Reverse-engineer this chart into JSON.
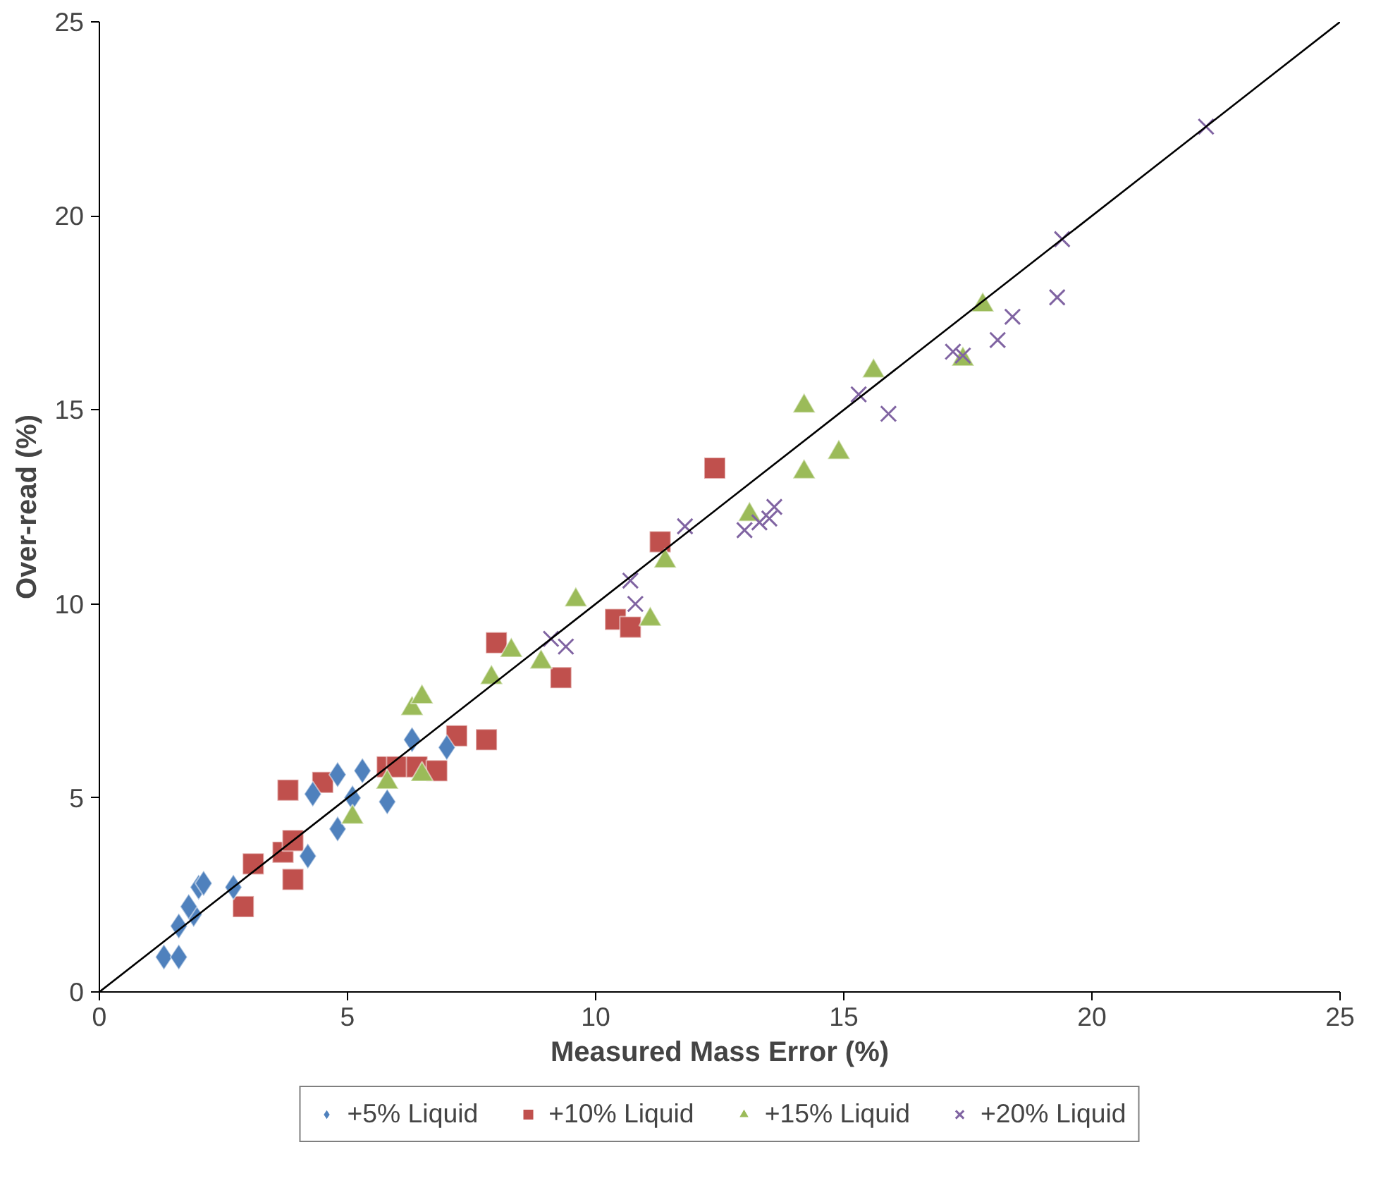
{
  "chart_data": {
    "type": "scatter",
    "xlabel": "Measured Mass Error (%)",
    "ylabel": "Over-read (%)",
    "xlim": [
      0,
      25
    ],
    "ylim": [
      0,
      25
    ],
    "xticks": [
      0,
      5,
      10,
      15,
      20,
      25
    ],
    "yticks": [
      0,
      5,
      10,
      15,
      20,
      25
    ],
    "grid": false,
    "legend": "bottom",
    "series": [
      {
        "name": "+5% Liquid",
        "color": "#4f81bd",
        "marker": "diamond",
        "x": [
          1.3,
          1.6,
          1.6,
          1.9,
          1.8,
          2.0,
          2.1,
          2.7,
          4.2,
          4.3,
          4.8,
          4.8,
          5.1,
          5.3,
          5.8,
          6.3,
          7.0
        ],
        "values": [
          0.9,
          0.9,
          1.7,
          2.0,
          2.2,
          2.7,
          2.8,
          2.7,
          3.5,
          5.1,
          4.2,
          5.6,
          5.0,
          5.7,
          4.9,
          6.5,
          6.3
        ]
      },
      {
        "name": "+10% Liquid",
        "color": "#c0504d",
        "marker": "square",
        "x": [
          2.9,
          3.1,
          3.7,
          3.9,
          3.9,
          3.8,
          4.5,
          5.8,
          6.0,
          6.4,
          6.8,
          7.2,
          7.8,
          8.0,
          9.3,
          10.4,
          10.7,
          11.3,
          12.4
        ],
        "values": [
          2.2,
          3.3,
          3.6,
          2.9,
          3.9,
          5.2,
          5.4,
          5.8,
          5.8,
          5.8,
          5.7,
          6.6,
          6.5,
          9.0,
          8.1,
          9.6,
          9.4,
          11.6,
          13.5
        ]
      },
      {
        "name": "+15% Liquid",
        "color": "#9bbb59",
        "marker": "triangle",
        "x": [
          5.1,
          5.8,
          6.3,
          6.5,
          6.5,
          7.9,
          8.3,
          8.9,
          9.6,
          11.1,
          11.4,
          13.1,
          14.2,
          14.2,
          14.9,
          15.6,
          17.4,
          17.8
        ],
        "values": [
          4.5,
          5.4,
          7.3,
          7.6,
          5.6,
          8.1,
          8.8,
          8.5,
          10.1,
          9.6,
          11.1,
          12.3,
          13.4,
          15.1,
          13.9,
          16.0,
          16.3,
          17.7
        ]
      },
      {
        "name": "+20% Liquid",
        "color": "#8064a2",
        "marker": "cross",
        "x": [
          9.1,
          9.4,
          10.7,
          10.8,
          11.8,
          13.0,
          13.3,
          13.5,
          13.6,
          15.3,
          15.9,
          17.2,
          17.4,
          18.1,
          18.4,
          19.3,
          19.4,
          22.3
        ],
        "values": [
          9.1,
          8.9,
          10.6,
          10.0,
          12.0,
          11.9,
          12.1,
          12.2,
          12.5,
          15.4,
          14.9,
          16.5,
          16.4,
          16.8,
          17.4,
          17.9,
          19.4,
          22.3
        ]
      },
      {
        "type": "line",
        "color": "#000000",
        "marker": "none",
        "x": [
          0,
          25
        ],
        "values": [
          0,
          25
        ]
      }
    ]
  }
}
